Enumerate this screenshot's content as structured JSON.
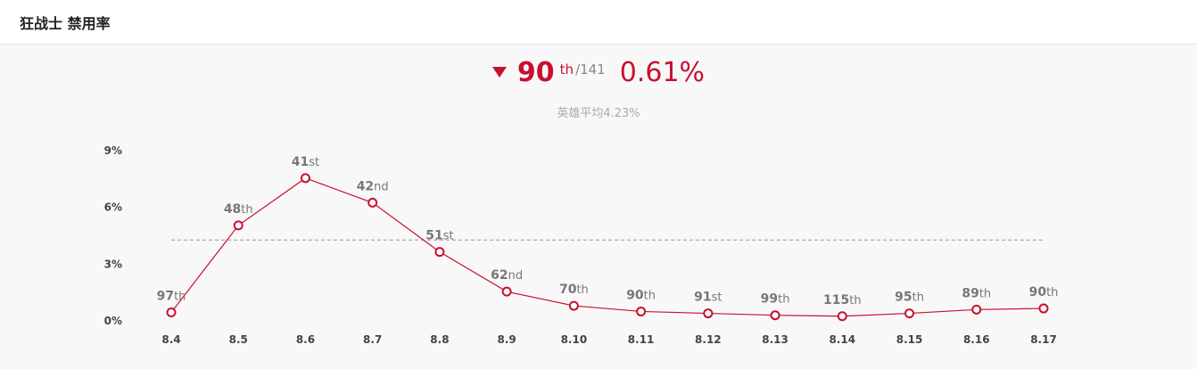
{
  "header": {
    "title": "狂战士 禁用率"
  },
  "summary": {
    "rank": "90",
    "rank_suffix": "th",
    "total": "/141",
    "rate": "0.61%",
    "average": "英雄平均4.23%"
  },
  "colors": {
    "accent": "#c8102e",
    "average_line": "#999999"
  },
  "icons": {
    "trend": "triangle-down-icon"
  },
  "chart_data": {
    "type": "line",
    "title": "",
    "xlabel": "",
    "ylabel": "",
    "categories": [
      "8.4",
      "8.5",
      "8.6",
      "8.7",
      "8.8",
      "8.9",
      "8.10",
      "8.11",
      "8.12",
      "8.13",
      "8.14",
      "8.15",
      "8.16",
      "8.17"
    ],
    "values": [
      0.4,
      5.0,
      7.5,
      6.2,
      3.6,
      1.5,
      0.75,
      0.45,
      0.35,
      0.25,
      0.2,
      0.35,
      0.55,
      0.61
    ],
    "rank_labels": [
      [
        "97",
        "th"
      ],
      [
        "48",
        "th"
      ],
      [
        "41",
        "st"
      ],
      [
        "42",
        "nd"
      ],
      [
        "51",
        "st"
      ],
      [
        "62",
        "nd"
      ],
      [
        "70",
        "th"
      ],
      [
        "90",
        "th"
      ],
      [
        "91",
        "st"
      ],
      [
        "99",
        "th"
      ],
      [
        "115",
        "th"
      ],
      [
        "95",
        "th"
      ],
      [
        "89",
        "th"
      ],
      [
        "90",
        "th"
      ]
    ],
    "average": 4.23,
    "yticks": [
      0,
      3,
      6,
      9
    ],
    "ytick_labels": [
      "0%",
      "3%",
      "6%",
      "9%"
    ],
    "ylim": [
      0,
      9
    ],
    "grid": false
  }
}
